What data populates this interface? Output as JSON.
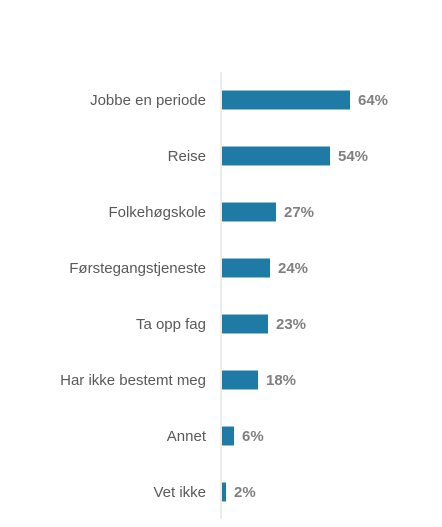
{
  "chart_data": {
    "type": "bar",
    "orientation": "horizontal",
    "title": "",
    "xlabel": "",
    "ylabel": "",
    "categories": [
      "Jobbe en periode",
      "Reise",
      "Folkehøgskole",
      "Førstegangstjeneste",
      "Ta opp fag",
      "Har ikke bestemt meg",
      "Annet",
      "Vet ikke"
    ],
    "values": [
      64,
      54,
      27,
      24,
      23,
      18,
      6,
      2
    ],
    "value_labels": [
      "64%",
      "54%",
      "27%",
      "24%",
      "23%",
      "18%",
      "6%",
      "2%"
    ],
    "xlim": [
      0,
      100
    ],
    "unit": "%",
    "grid": false,
    "legend": "none",
    "bar_color": "#1f7ba6",
    "axis_color": "#d9d9d9"
  }
}
